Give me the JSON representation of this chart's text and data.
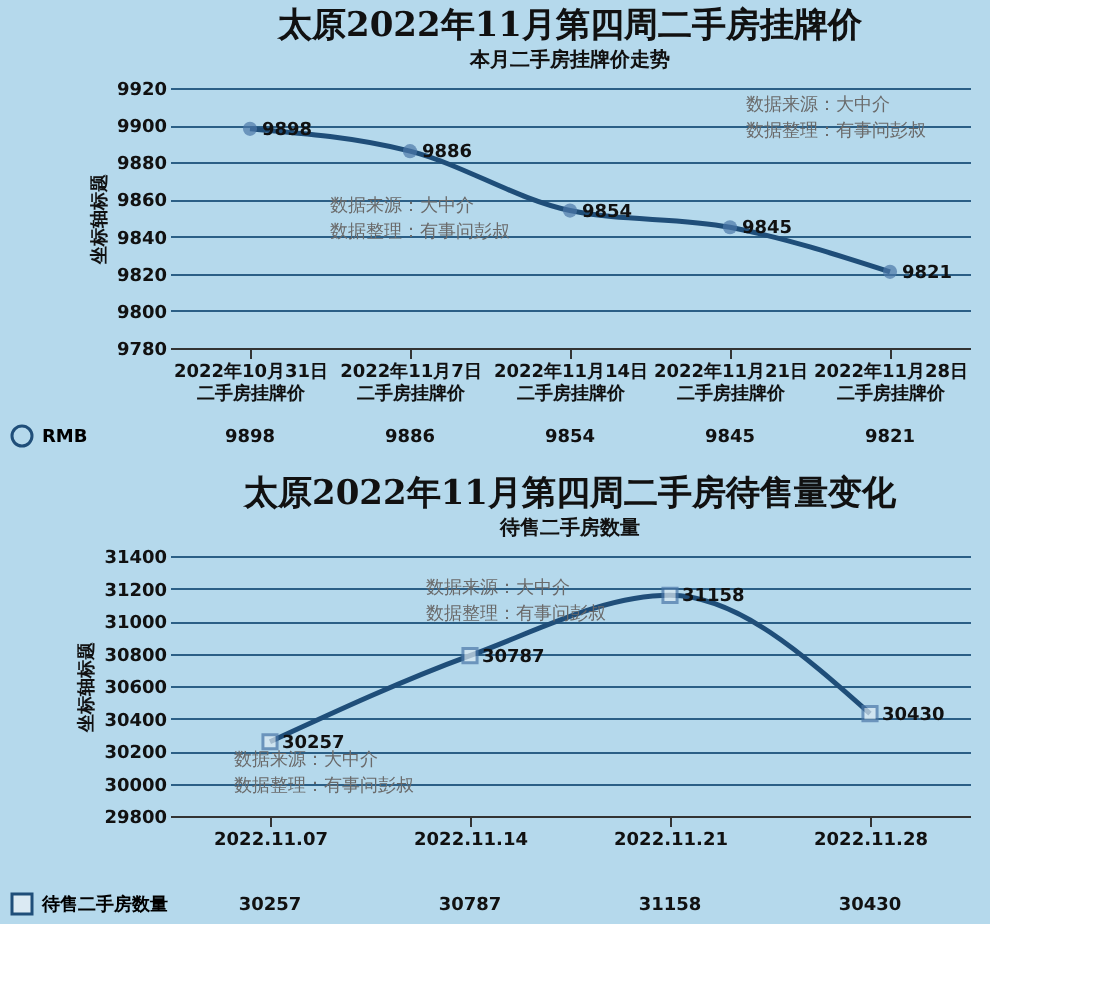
{
  "chart_data": [
    {
      "type": "line",
      "title": "太原2022年11月第四周二手房挂牌价",
      "subtitle": "本月二手房挂牌价走势",
      "ylabel": "坐标轴标题",
      "categories": [
        "2022年10月31日二手房挂牌价",
        "2022年11月7日二手房挂牌价",
        "2022年11月14日二手房挂牌价",
        "2022年11月21日二手房挂牌价",
        "2022年11月28日二手房挂牌价"
      ],
      "series": [
        {
          "name": "RMB",
          "color": "#1f4e79",
          "values": [
            9898,
            9886,
            9854,
            9845,
            9821
          ],
          "value_labels": [
            "9898",
            "9886",
            "9854",
            "9845",
            "9821"
          ]
        }
      ],
      "ylim": [
        9780,
        9920
      ],
      "yticks": [
        9780,
        9800,
        9820,
        9840,
        9860,
        9880,
        9900,
        9920
      ],
      "grid": "y",
      "marker": "circle",
      "legend": "bottom left",
      "annotations": [
        "数据来源：大中介",
        "数据整理：有事问彭叔",
        "数据来源：大中介",
        "数据整理：有事问彭叔",
        "9898",
        "9886",
        "9854",
        "9845",
        "9821"
      ]
    },
    {
      "type": "line",
      "title": "太原2022年11月第四周二手房待售量变化",
      "subtitle": "待售二手房数量",
      "ylabel": "坐标轴标题",
      "categories": [
        "2022.11.07",
        "2022.11.14",
        "2022.11.21",
        "2022.11.28"
      ],
      "series": [
        {
          "name": "待售二手房数量",
          "color": "#1f4e79",
          "values": [
            30257,
            30787,
            31158,
            30430
          ],
          "value_labels": [
            "30257",
            "30787",
            "31158",
            "30430"
          ]
        }
      ],
      "ylim": [
        29800,
        31400
      ],
      "yticks": [
        29800,
        30000,
        30200,
        30400,
        30600,
        30800,
        31000,
        31200,
        31400
      ],
      "grid": "y",
      "marker": "square",
      "legend": "bottom left",
      "annotations": [
        "数据来源：大中介",
        "数据整理：有事问彭叔",
        "数据来源：大中介",
        "数据整理：有事问彭叔",
        "30257",
        "30787",
        "31158",
        "30430"
      ]
    }
  ]
}
